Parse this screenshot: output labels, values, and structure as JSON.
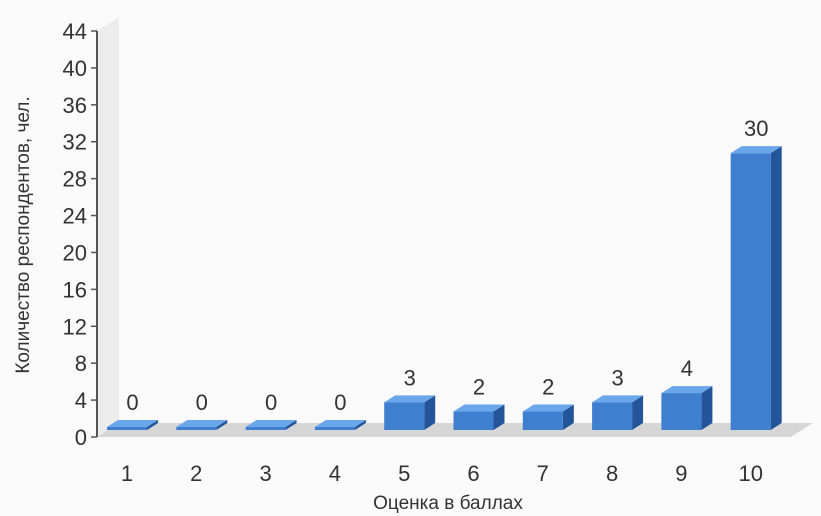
{
  "chart_data": {
    "type": "bar",
    "title": "",
    "xlabel": "Оценка в баллах",
    "ylabel": "Количество респондентов, чел.",
    "categories": [
      "1",
      "2",
      "3",
      "4",
      "5",
      "6",
      "7",
      "8",
      "9",
      "10"
    ],
    "values": [
      0,
      0,
      0,
      0,
      3,
      2,
      2,
      3,
      4,
      30
    ],
    "ylim": [
      0,
      44
    ],
    "yticks": [
      "0",
      "4",
      "8",
      "12",
      "16",
      "20",
      "24",
      "28",
      "32",
      "36",
      "40",
      "44"
    ],
    "data_labels": [
      "0",
      "0",
      "0",
      "0",
      "3",
      "2",
      "2",
      "3",
      "4",
      "30"
    ],
    "style": "3d",
    "grid": false,
    "colors": {
      "bar_front": "#3f7fcf",
      "bar_top": "#6aa6ea",
      "bar_side": "#24549a",
      "floor": "#d6d6d6",
      "wall": "#ececec",
      "axis": "#555555"
    }
  }
}
